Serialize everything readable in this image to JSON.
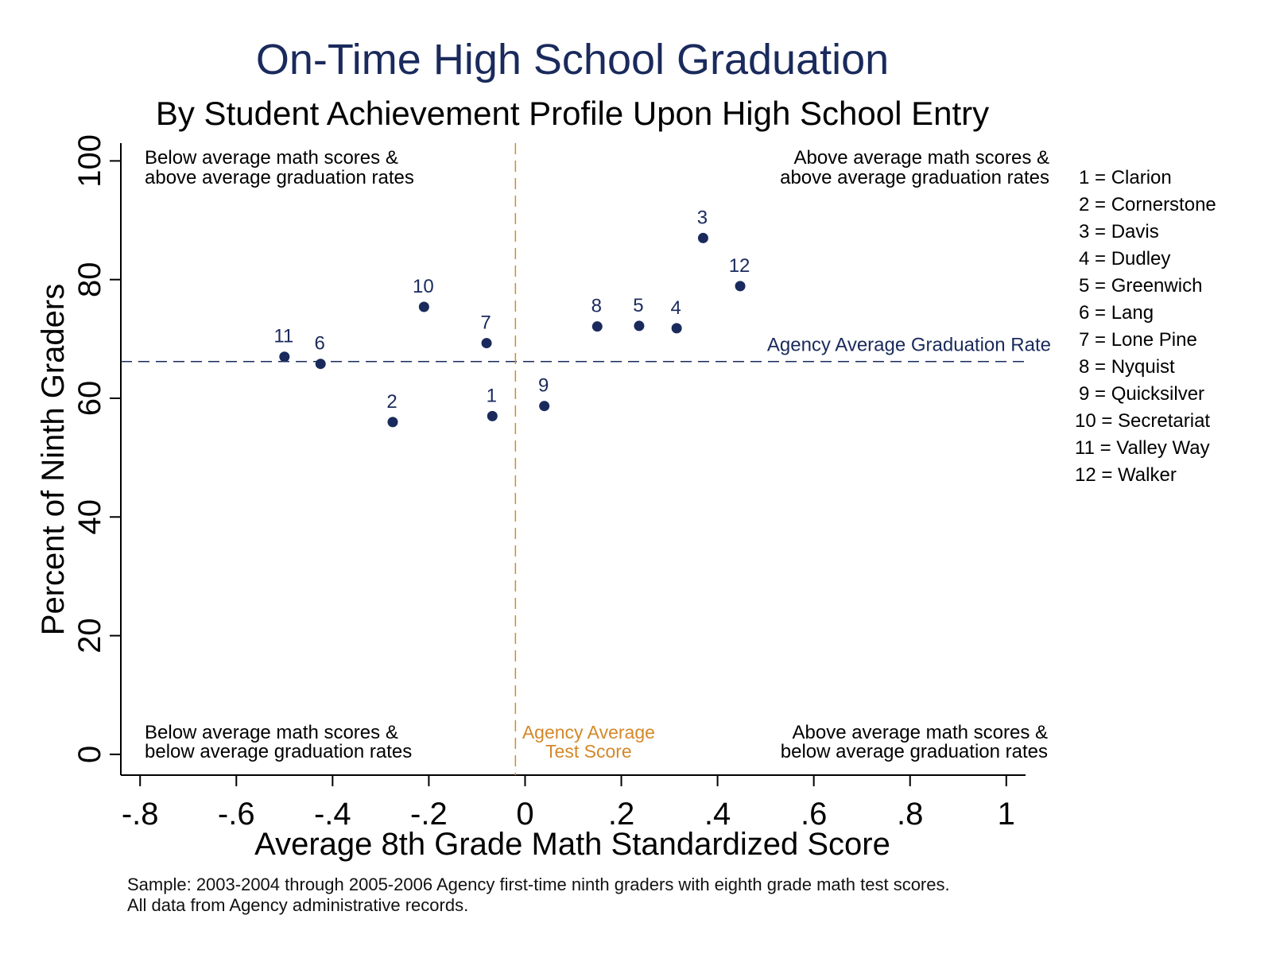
{
  "chart_data": {
    "type": "scatter",
    "title": "On-Time High School Graduation",
    "subtitle": "By Student Achievement Profile Upon High School Entry",
    "xlabel": "Average 8th Grade Math Standardized Score",
    "ylabel": "Percent of Ninth Graders",
    "xlim": [
      -0.84,
      1.04
    ],
    "ylim": [
      -3.5,
      103
    ],
    "x_ticks": [
      -0.8,
      -0.6,
      -0.4,
      -0.2,
      0,
      0.2,
      0.4,
      0.6,
      0.8,
      1
    ],
    "x_tick_labels": [
      "-.8",
      "-.6",
      "-.4",
      "-.2",
      "0",
      ".2",
      ".4",
      ".6",
      ".8",
      "1"
    ],
    "y_ticks": [
      0,
      20,
      40,
      60,
      80,
      100
    ],
    "y_tick_labels": [
      "0",
      "20",
      "40",
      "60",
      "80",
      "100"
    ],
    "grid": false,
    "points": [
      {
        "label": "1",
        "x": -0.068,
        "y": 57.0
      },
      {
        "label": "2",
        "x": -0.275,
        "y": 56.0
      },
      {
        "label": "3",
        "x": 0.37,
        "y": 87.0
      },
      {
        "label": "4",
        "x": 0.315,
        "y": 71.8
      },
      {
        "label": "5",
        "x": 0.237,
        "y": 72.2
      },
      {
        "label": "6",
        "x": -0.425,
        "y": 65.8
      },
      {
        "label": "7",
        "x": -0.08,
        "y": 69.3
      },
      {
        "label": "8",
        "x": 0.15,
        "y": 72.1
      },
      {
        "label": "9",
        "x": 0.04,
        "y": 58.7
      },
      {
        "label": "10",
        "x": -0.21,
        "y": 75.4
      },
      {
        "label": "11",
        "x": -0.5,
        "y": 67.0
      },
      {
        "label": "12",
        "x": 0.447,
        "y": 78.9
      }
    ],
    "reference_lines": {
      "average_graduation_rate": {
        "y": 66.2,
        "label": "Agency Average Graduation Rate",
        "color": "#1a2a5c"
      },
      "average_test_score": {
        "x": -0.02,
        "label_lines": [
          "Agency Average",
          "Test Score"
        ],
        "color": "#d4882a"
      }
    },
    "quadrant_labels": {
      "top_left": [
        "Below average math scores &",
        "above average graduation rates"
      ],
      "top_right": [
        "Above average math scores &",
        "above average graduation rates"
      ],
      "bottom_left": [
        "Below average math scores &",
        "below average graduation rates"
      ],
      "bottom_right": [
        "Above average math scores &",
        "below average graduation rates"
      ]
    },
    "legend": [
      "1 = Clarion",
      "2 = Cornerstone",
      "3 = Davis",
      "4 = Dudley",
      "5 = Greenwich",
      "6 = Lang",
      "7 = Lone Pine",
      "8 = Nyquist",
      "9 = Quicksilver",
      "10 = Secretariat",
      "11 = Valley Way",
      "12 = Walker"
    ],
    "legend_position": "right",
    "colors": {
      "title": "#1a2a5c",
      "marker": "#1a2a5c",
      "orange": "#d4882a",
      "axis": "#000000"
    }
  },
  "notes": [
    "Sample: 2003-2004 through 2005-2006 Agency first-time ninth graders with eighth grade math test scores.",
    "All data from Agency administrative records."
  ]
}
